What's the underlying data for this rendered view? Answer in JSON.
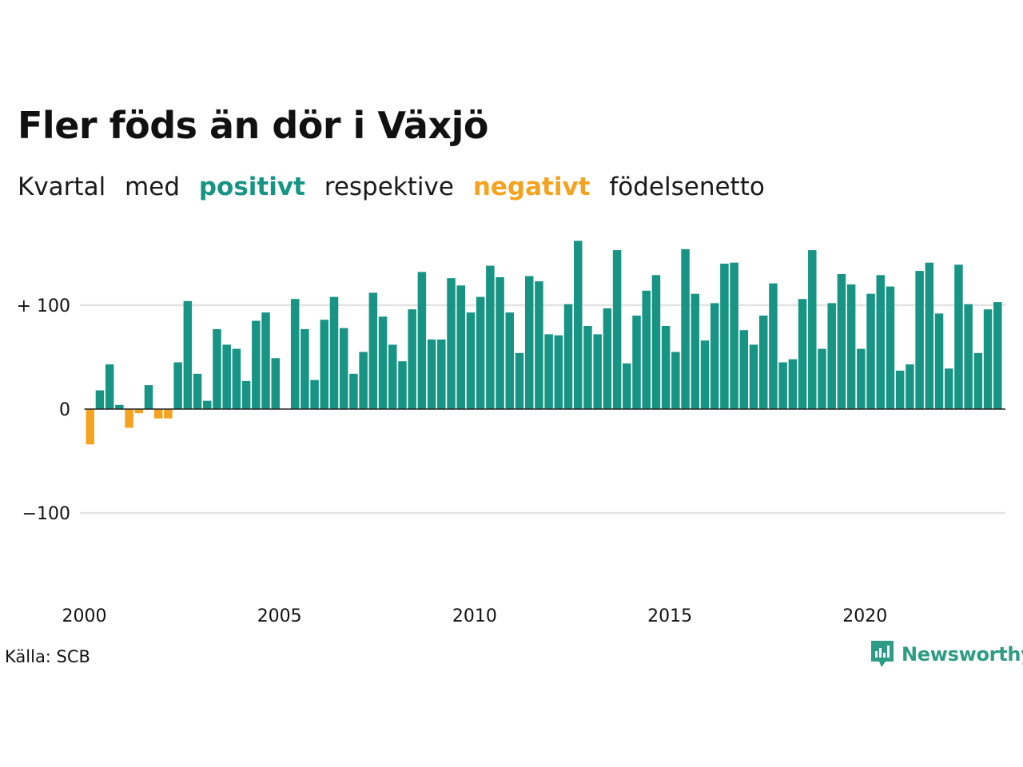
{
  "colors": {
    "positive": "#179484",
    "negative": "#f4a21f",
    "grid": "#e3e3e3",
    "zero": "#222222",
    "text": "#111111",
    "logo": "#2e9c85"
  },
  "header": {
    "title": "Fler föds än dör i Växjö",
    "subtitle_parts": [
      "Kvartal",
      "med",
      "positivt",
      "respektive",
      "negativt",
      "födelsenetto"
    ]
  },
  "footer": {
    "source": "Källa: SCB",
    "brand": "Newsworthy",
    "brand_icon": "bar-chart-bubble-icon"
  },
  "chart_data": {
    "type": "bar",
    "title": "Fler föds än dör i Växjö",
    "subtitle": "Kvartal med positivt respektive negativt födelsenetto",
    "xlabel": "",
    "ylabel": "",
    "ylim": [
      -180,
      165
    ],
    "yticks": [
      100,
      0,
      -100
    ],
    "ytick_labels": [
      "+ 100",
      "0",
      "−100"
    ],
    "xtick_labels": [
      "2000",
      "2005",
      "2010",
      "2015",
      "2020"
    ],
    "first_period": "2000 Q1",
    "grid": true,
    "legend": "none",
    "values": [
      -34,
      18,
      43,
      4,
      -18,
      -4,
      23,
      -9,
      -9,
      45,
      104,
      34,
      8,
      77,
      62,
      58,
      27,
      85,
      93,
      49,
      0,
      106,
      77,
      28,
      86,
      108,
      78,
      34,
      55,
      112,
      89,
      62,
      46,
      96,
      132,
      67,
      67,
      126,
      119,
      93,
      108,
      138,
      127,
      93,
      54,
      128,
      123,
      72,
      71,
      101,
      162,
      80,
      72,
      97,
      153,
      44,
      90,
      114,
      129,
      80,
      55,
      154,
      111,
      66,
      102,
      140,
      141,
      76,
      62,
      90,
      121,
      45,
      48,
      106,
      153,
      58,
      102,
      130,
      120,
      58,
      111,
      129,
      118,
      37,
      43,
      133,
      141,
      92,
      39,
      139,
      101,
      54,
      96,
      103
    ]
  }
}
